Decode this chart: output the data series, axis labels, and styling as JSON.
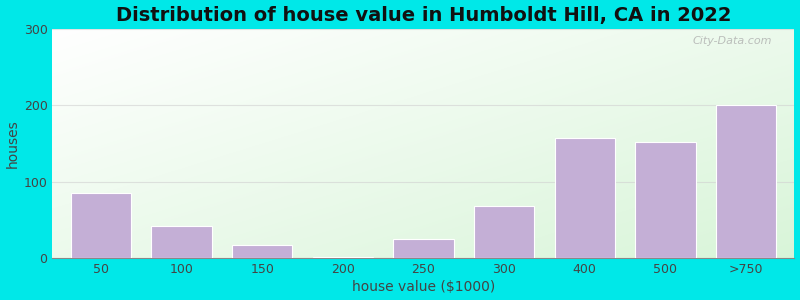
{
  "title": "Distribution of house value in Humboldt Hill, CA in 2022",
  "xlabel": "house value ($1000)",
  "ylabel": "houses",
  "categories": [
    "50",
    "100",
    "150",
    "200",
    "250",
    "300",
    "400",
    "500",
    ">750"
  ],
  "values": [
    85,
    42,
    17,
    2,
    25,
    68,
    158,
    152,
    200
  ],
  "bar_color": "#c4afd6",
  "bar_edgecolor": "#ffffff",
  "bar_linewidth": 0.8,
  "ylim": [
    0,
    300
  ],
  "yticks": [
    0,
    100,
    200,
    300
  ],
  "outer_bg": "#00e8e8",
  "plot_bg_top_left": "#f0fff0",
  "plot_bg_colors": [
    "#ffffff",
    "#d8efd8"
  ],
  "grid_color": "#d0d0d0",
  "title_fontsize": 14,
  "axis_label_fontsize": 10,
  "tick_fontsize": 9,
  "watermark": "City-Data.com",
  "bar_width": 0.75
}
